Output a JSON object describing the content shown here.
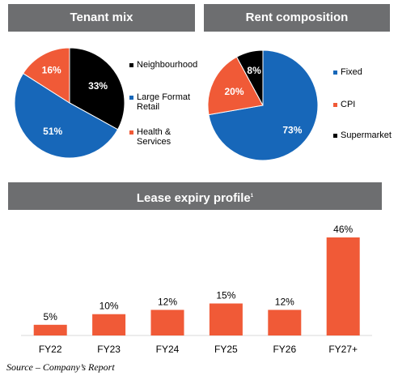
{
  "colors": {
    "blue": "#1767b9",
    "orange": "#f05a37",
    "black": "#000000",
    "header": "#6d6e70"
  },
  "chart_data": [
    {
      "type": "pie",
      "title": "Tenant mix",
      "slices": [
        {
          "label": "Neighbourhood",
          "value": 33,
          "display": "33%",
          "color": "#000000"
        },
        {
          "label": "Large Format Retail",
          "value": 51,
          "display": "51%",
          "color": "#1767b9"
        },
        {
          "label": "Health & Services",
          "value": 16,
          "display": "16%",
          "color": "#f05a37"
        }
      ],
      "legend_lines": [
        [
          "Neighbourhood"
        ],
        [
          "Large Format",
          "Retail"
        ],
        [
          "Health &",
          "Services"
        ]
      ],
      "legend_position": "right"
    },
    {
      "type": "pie",
      "title": "Rent composition",
      "slices": [
        {
          "label": "Fixed",
          "value": 73,
          "display": "73%",
          "color": "#1767b9"
        },
        {
          "label": "CPI",
          "value": 20,
          "display": "20%",
          "color": "#f05a37"
        },
        {
          "label": "Supermarket",
          "value": 8,
          "display": "8%",
          "color": "#000000"
        }
      ],
      "legend_lines": [
        [
          "Fixed"
        ],
        [
          "CPI"
        ],
        [
          "Supermarket"
        ]
      ],
      "legend_position": "right"
    },
    {
      "type": "bar",
      "title": "Lease expiry profile",
      "title_superscript": "1",
      "categories": [
        "FY22",
        "FY23",
        "FY24",
        "FY25",
        "FY26",
        "FY27+"
      ],
      "values": [
        5,
        10,
        12,
        15,
        12,
        46
      ],
      "labels": [
        "5%",
        "10%",
        "12%",
        "15%",
        "12%",
        "46%"
      ],
      "color": "#f05a37",
      "ylim": [
        0,
        46
      ]
    }
  ],
  "source": "Source – Company’s Report"
}
